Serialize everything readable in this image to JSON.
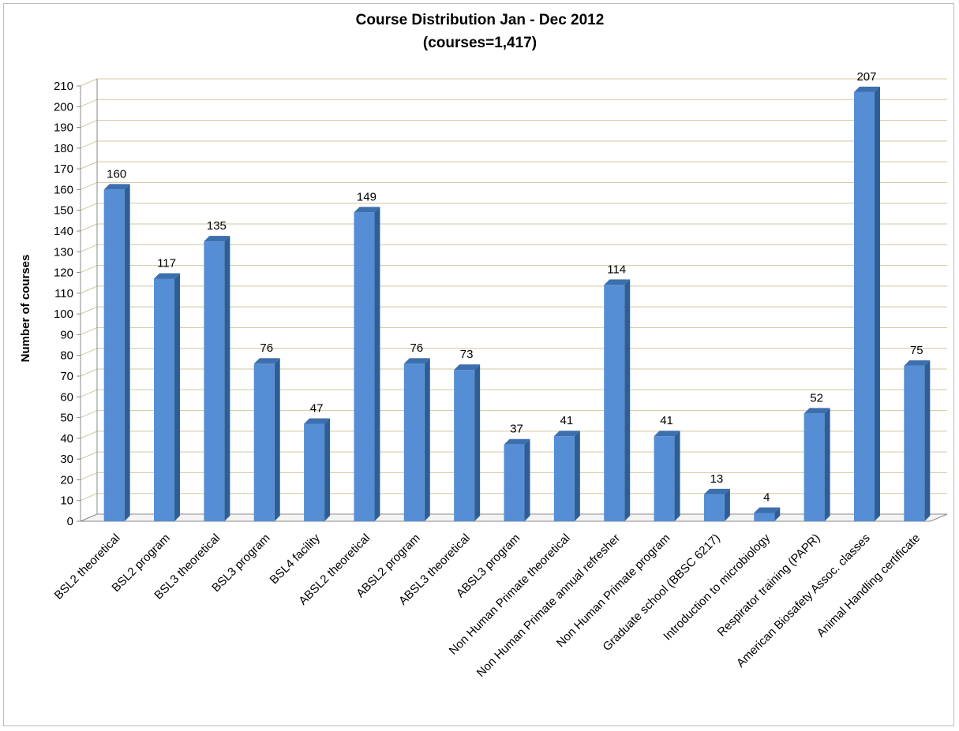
{
  "chart_data": {
    "type": "bar",
    "title": [
      "Course Distribution Jan - Dec 2012",
      "(courses=1,417)"
    ],
    "ylabel": "Number of courses",
    "xlabel": "",
    "ylim": [
      0,
      210
    ],
    "ytick_step": 10,
    "grid": true,
    "three_d": true,
    "colors": {
      "bar_front": "#558ed5",
      "bar_side": "#2e5e96",
      "bar_top": "#3d6fae",
      "grid": "#cfc8a0",
      "axis": "#8a8a8a"
    },
    "categories": [
      "BSL2 theoretical",
      "BSL2 program",
      "BSL3 theoretical",
      "BSL3 program",
      "BSL4 facility",
      "ABSL2 theoretical",
      "ABSL2 program",
      "ABSL3 theoretical",
      "ABSL3 program",
      "Non Human Primate theoretical",
      "Non Human Primate annual refresher",
      "Non Human Primate program",
      "Graduate school (BBSC 6217)",
      "Introduction to microbiology",
      "Respirator training (PAPR)",
      "American Biosafety Assoc. classes",
      "Animal Handling certificate"
    ],
    "values": [
      160,
      117,
      135,
      76,
      47,
      149,
      76,
      73,
      37,
      41,
      114,
      41,
      13,
      4,
      52,
      207,
      75
    ],
    "data_labels": [
      "160",
      "117",
      "135",
      "76",
      "47",
      "149",
      "76",
      "73",
      "37",
      "41",
      "114",
      "41",
      "13",
      "4",
      "52",
      "207",
      "75"
    ]
  }
}
